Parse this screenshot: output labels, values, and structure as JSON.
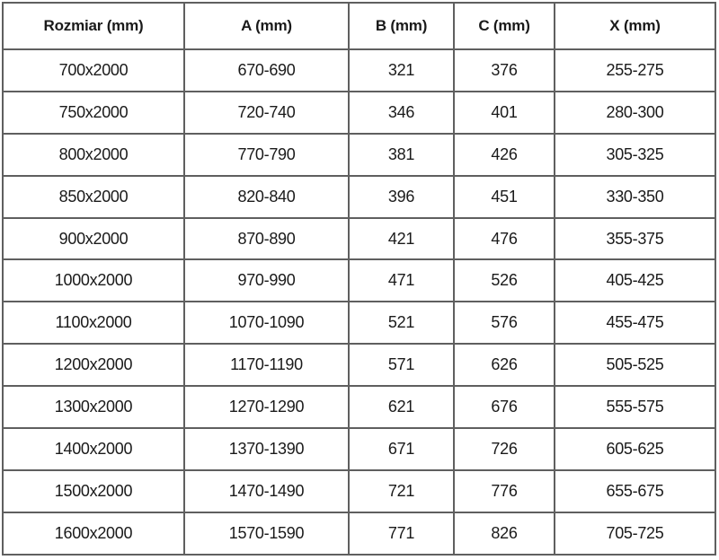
{
  "chart_data": {
    "type": "table",
    "columns": [
      "Rozmiar (mm)",
      "A (mm)",
      "B (mm)",
      "C (mm)",
      "X (mm)"
    ],
    "rows": [
      [
        "700x2000",
        "670-690",
        "321",
        "376",
        "255-275"
      ],
      [
        "750x2000",
        "720-740",
        "346",
        "401",
        "280-300"
      ],
      [
        "800x2000",
        "770-790",
        "381",
        "426",
        "305-325"
      ],
      [
        "850x2000",
        "820-840",
        "396",
        "451",
        "330-350"
      ],
      [
        "900x2000",
        "870-890",
        "421",
        "476",
        "355-375"
      ],
      [
        "1000x2000",
        "970-990",
        "471",
        "526",
        "405-425"
      ],
      [
        "1100x2000",
        "1070-1090",
        "521",
        "576",
        "455-475"
      ],
      [
        "1200x2000",
        "1170-1190",
        "571",
        "626",
        "505-525"
      ],
      [
        "1300x2000",
        "1270-1290",
        "621",
        "676",
        "555-575"
      ],
      [
        "1400x2000",
        "1370-1390",
        "671",
        "726",
        "605-625"
      ],
      [
        "1500x2000",
        "1470-1490",
        "721",
        "776",
        "655-675"
      ],
      [
        "1600x2000",
        "1570-1590",
        "771",
        "826",
        "705-725"
      ]
    ],
    "layout": {
      "header_bold": true,
      "grid": "on",
      "text_align": "center"
    }
  },
  "colors": {
    "background": "#ffffff",
    "text": "#1a1a1a",
    "grid_border": "#5f5f5f",
    "outer_border": "#3c3c3c"
  }
}
